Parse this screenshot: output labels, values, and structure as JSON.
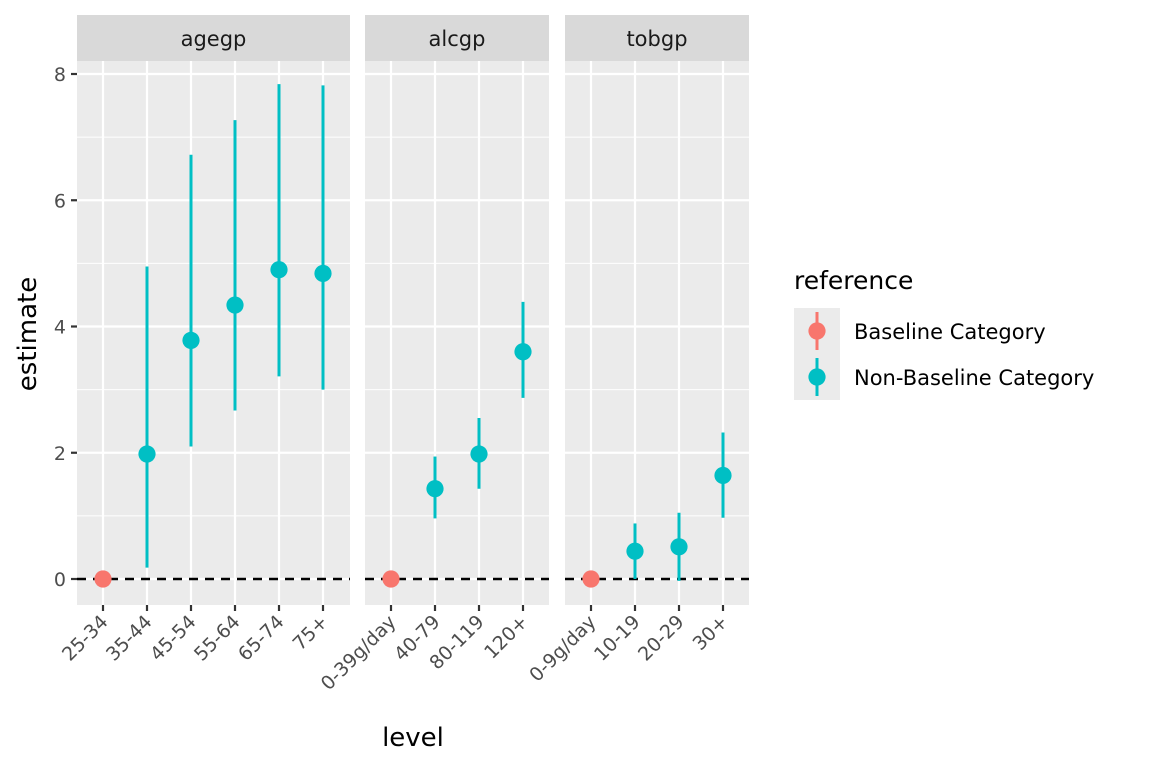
{
  "chart_data": {
    "type": "scatter",
    "geom": "pointrange",
    "facet_variable": "term",
    "ylabel": "estimate",
    "xlabel": "level",
    "ylim": [
      -0.42,
      8.85
    ],
    "y_ticks": [
      0,
      2,
      4,
      6,
      8
    ],
    "reference_line": {
      "y": 0,
      "style": "dashed",
      "color": "#000000"
    },
    "legend": {
      "title": "reference",
      "position": "right",
      "entries": [
        {
          "label": "Baseline Category",
          "color": "#F8766D"
        },
        {
          "label": "Non-Baseline Category",
          "color": "#00BFC4"
        }
      ]
    },
    "panels": [
      {
        "name": "agegp",
        "points": [
          {
            "level": "25-34",
            "estimate": 0.0,
            "low": null,
            "high": null,
            "reference": "Baseline Category"
          },
          {
            "level": "35-44",
            "estimate": 1.98,
            "low": 0.18,
            "high": 4.95,
            "reference": "Non-Baseline Category"
          },
          {
            "level": "45-54",
            "estimate": 3.78,
            "low": 2.1,
            "high": 6.72,
            "reference": "Non-Baseline Category"
          },
          {
            "level": "55-64",
            "estimate": 4.34,
            "low": 2.67,
            "high": 7.27,
            "reference": "Non-Baseline Category"
          },
          {
            "level": "65-74",
            "estimate": 4.9,
            "low": 3.21,
            "high": 7.84,
            "reference": "Non-Baseline Category"
          },
          {
            "level": "75+",
            "estimate": 4.84,
            "low": 3.0,
            "high": 7.82,
            "reference": "Non-Baseline Category"
          }
        ]
      },
      {
        "name": "alcgp",
        "points": [
          {
            "level": "0-39g/day",
            "estimate": 0.0,
            "low": null,
            "high": null,
            "reference": "Baseline Category"
          },
          {
            "level": "40-79",
            "estimate": 1.43,
            "low": 0.96,
            "high": 1.94,
            "reference": "Non-Baseline Category"
          },
          {
            "level": "80-119",
            "estimate": 1.98,
            "low": 1.43,
            "high": 2.55,
            "reference": "Non-Baseline Category"
          },
          {
            "level": "120+",
            "estimate": 3.6,
            "low": 2.87,
            "high": 4.39,
            "reference": "Non-Baseline Category"
          }
        ]
      },
      {
        "name": "tobgp",
        "points": [
          {
            "level": "0-9g/day",
            "estimate": 0.0,
            "low": null,
            "high": null,
            "reference": "Baseline Category"
          },
          {
            "level": "10-19",
            "estimate": 0.44,
            "low": 0.0,
            "high": 0.88,
            "reference": "Non-Baseline Category"
          },
          {
            "level": "20-29",
            "estimate": 0.51,
            "low": -0.03,
            "high": 1.05,
            "reference": "Non-Baseline Category"
          },
          {
            "level": "30+",
            "estimate": 1.64,
            "low": 0.97,
            "high": 2.32,
            "reference": "Non-Baseline Category"
          }
        ]
      }
    ]
  }
}
